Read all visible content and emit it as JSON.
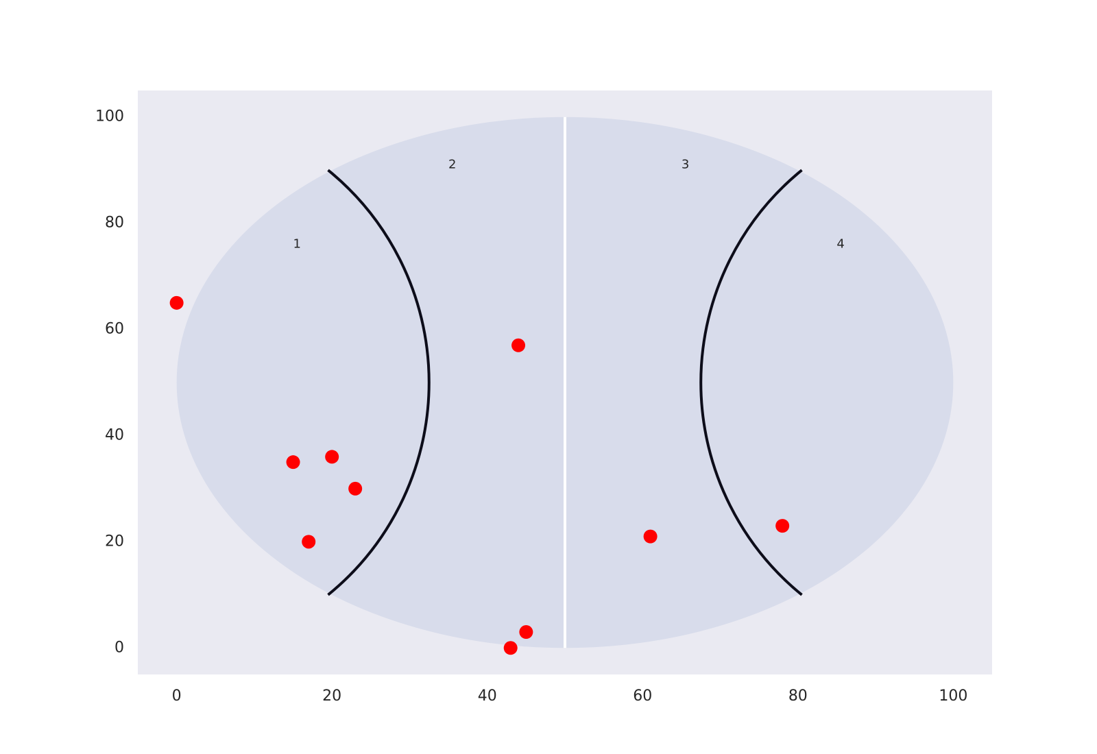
{
  "chart_data": {
    "type": "scatter",
    "title": "",
    "xlabel": "",
    "ylabel": "",
    "xlim": [
      -5,
      105
    ],
    "ylim": [
      -5,
      105
    ],
    "xticks": [
      0,
      20,
      40,
      60,
      80,
      100
    ],
    "yticks": [
      0,
      20,
      40,
      60,
      80,
      100
    ],
    "grid": false,
    "background_color": "#eaeaf2",
    "field": {
      "shape": "ellipse",
      "center": [
        50,
        50
      ],
      "x_extent": [
        0,
        100
      ],
      "y_extent": [
        0,
        100
      ],
      "fill_color": "#d8dceb",
      "center_line_x": 50,
      "center_line_color": "#ffffff",
      "left_arc": {
        "through": [
          [
            19.5,
            90
          ],
          [
            32.5,
            50
          ],
          [
            19.5,
            10
          ]
        ]
      },
      "right_arc": {
        "through": [
          [
            80.5,
            90
          ],
          [
            67.5,
            50
          ],
          [
            80.5,
            10
          ]
        ]
      },
      "arc_color": "#0d0d1a"
    },
    "zones": [
      {
        "label": "1",
        "x": 15.5,
        "y": 76
      },
      {
        "label": "2",
        "x": 35.5,
        "y": 91
      },
      {
        "label": "3",
        "x": 65.5,
        "y": 91
      },
      {
        "label": "4",
        "x": 85.5,
        "y": 76
      }
    ],
    "series": [
      {
        "color": "#ff0000",
        "points": [
          {
            "x": 0,
            "y": 65
          },
          {
            "x": 15,
            "y": 35
          },
          {
            "x": 20,
            "y": 36
          },
          {
            "x": 23,
            "y": 30
          },
          {
            "x": 17,
            "y": 20
          },
          {
            "x": 44,
            "y": 57
          },
          {
            "x": 43,
            "y": 0
          },
          {
            "x": 45,
            "y": 3
          },
          {
            "x": 61,
            "y": 21
          },
          {
            "x": 78,
            "y": 23
          }
        ]
      }
    ]
  }
}
